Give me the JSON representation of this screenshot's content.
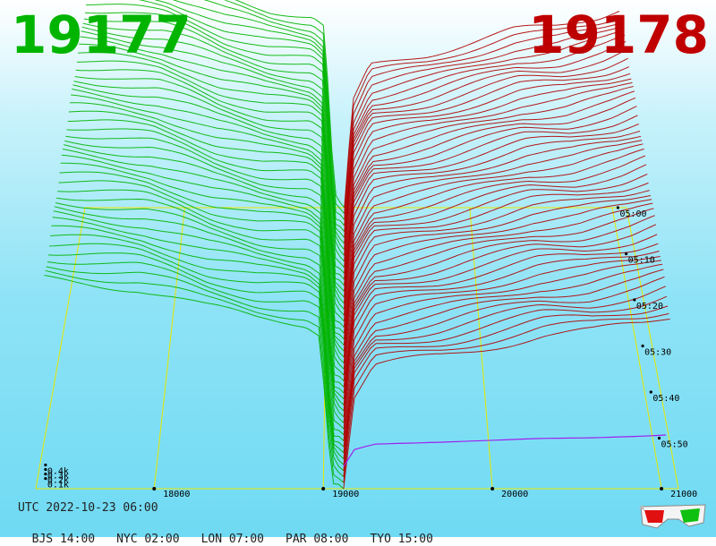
{
  "header": {
    "bid_total": "19177",
    "ask_total": "19178"
  },
  "footer": {
    "utc": "UTC 2022-10-23 06:00",
    "zones": [
      "BJS 14:00",
      "NYC 02:00",
      "LON 07:00",
      "PAR 08:00",
      "TYO 15:00"
    ]
  },
  "colors": {
    "bid": "#00b400",
    "ask": "#b00000",
    "grid": "#e8e800",
    "baseline": "#a020f0"
  },
  "icons": {
    "glasses": "3d-glasses-icon"
  },
  "chart_data": {
    "type": "area",
    "x_axis": {
      "label": "",
      "ticks": [
        18000,
        19000,
        20000,
        21000
      ],
      "range": [
        17300,
        21100
      ]
    },
    "y_axis": {
      "label": "",
      "ticks": [
        "0.1k",
        "0.2k",
        "0.3k",
        "0.4k"
      ],
      "tick_values": [
        100,
        200,
        300,
        400
      ]
    },
    "z_axis": {
      "label": "",
      "ticks": [
        "05:00",
        "05:10",
        "05:20",
        "05:30",
        "05:40",
        "05:50"
      ]
    },
    "series": [
      {
        "side": "bid",
        "profile_x": [
          17350,
          17600,
          17900,
          18100,
          18300,
          18600,
          18900,
          18980,
          19050,
          19120
        ],
        "profile_y": [
          1200,
          1180,
          1150,
          1100,
          1040,
          980,
          950,
          900,
          60,
          0
        ]
      },
      {
        "side": "ask",
        "profile_x": [
          19120,
          19180,
          19300,
          19700,
          20000,
          20300,
          20600,
          20900,
          21050
        ],
        "profile_y": [
          0,
          520,
          700,
          760,
          820,
          880,
          900,
          950,
          990
        ]
      }
    ],
    "grid": true,
    "legend": "none"
  }
}
